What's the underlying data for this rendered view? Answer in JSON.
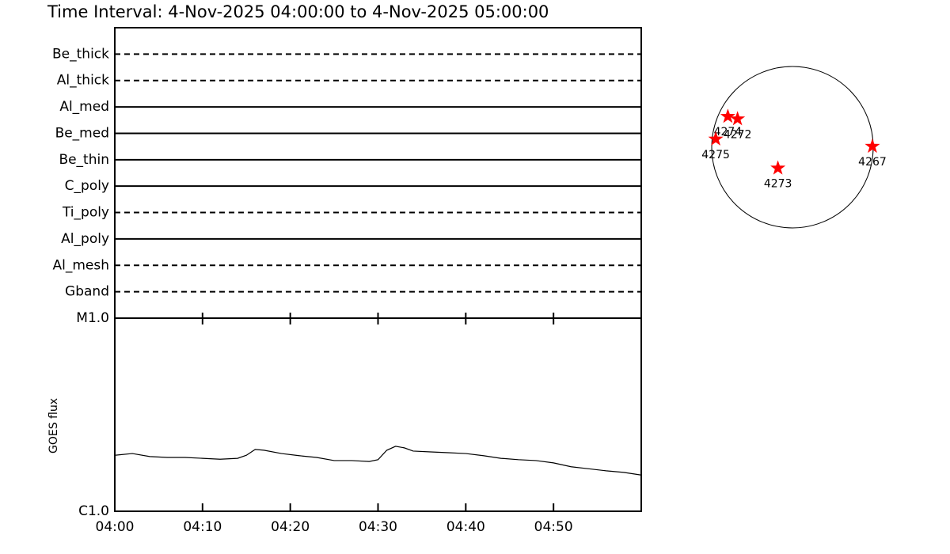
{
  "chart_data": [
    {
      "type": "timeline",
      "title": "Time Interval:  4-Nov-2025 04:00:00 to  4-Nov-2025 05:00:00",
      "categories": [
        "Be_thick",
        "Al_thick",
        "Al_med",
        "Be_med",
        "Be_thin",
        "C_poly",
        "Ti_poly",
        "Al_poly",
        "Al_mesh",
        "Gband"
      ],
      "line_styles": [
        "dashed",
        "dashed",
        "solid",
        "solid",
        "solid",
        "solid",
        "dashed",
        "solid",
        "dashed",
        "dashed"
      ]
    },
    {
      "type": "line",
      "ylabel": "GOES flux",
      "log_scale": true,
      "xlim": [
        0,
        60
      ],
      "xticks": [
        {
          "value": 0,
          "label": "04:00"
        },
        {
          "value": 10,
          "label": "04:10"
        },
        {
          "value": 20,
          "label": "04:20"
        },
        {
          "value": 30,
          "label": "04:30"
        },
        {
          "value": 40,
          "label": "04:40"
        },
        {
          "value": 50,
          "label": "04:50"
        }
      ],
      "ylim": [
        1e-06,
        1e-05
      ],
      "yticks": [
        {
          "value": 1e-06,
          "label": "C1.0"
        },
        {
          "value": 1e-05,
          "label": "M1.0"
        }
      ],
      "color": "#000000",
      "x": [
        0,
        2,
        4,
        6,
        8,
        10,
        12,
        14,
        15,
        16,
        17,
        19,
        21,
        23,
        25,
        27,
        29,
        30,
        31,
        32,
        33,
        34,
        36,
        38,
        40,
        42,
        44,
        46,
        48,
        50,
        52,
        54,
        56,
        58,
        60
      ],
      "values": [
        1.95e-06,
        1.99e-06,
        1.92e-06,
        1.9e-06,
        1.9e-06,
        1.88e-06,
        1.86e-06,
        1.88e-06,
        1.95e-06,
        2.09e-06,
        2.07e-06,
        1.99e-06,
        1.94e-06,
        1.9e-06,
        1.83e-06,
        1.83e-06,
        1.81e-06,
        1.85e-06,
        2.07e-06,
        2.17e-06,
        2.13e-06,
        2.05e-06,
        2.03e-06,
        2.01e-06,
        1.99e-06,
        1.94e-06,
        1.88e-06,
        1.85e-06,
        1.83e-06,
        1.78e-06,
        1.7e-06,
        1.66e-06,
        1.62e-06,
        1.59e-06,
        1.54e-06
      ]
    },
    {
      "type": "scatter",
      "xlim": [
        -1,
        1
      ],
      "ylim": [
        -1,
        1
      ],
      "color": "#ff0000",
      "labels": [
        "4274",
        "4272",
        "4275",
        "4273",
        "4267"
      ],
      "x": [
        -0.8,
        -0.68,
        -0.95,
        -0.18,
        0.99
      ],
      "values": [
        0.38,
        0.35,
        0.1,
        -0.26,
        0.01
      ]
    }
  ]
}
